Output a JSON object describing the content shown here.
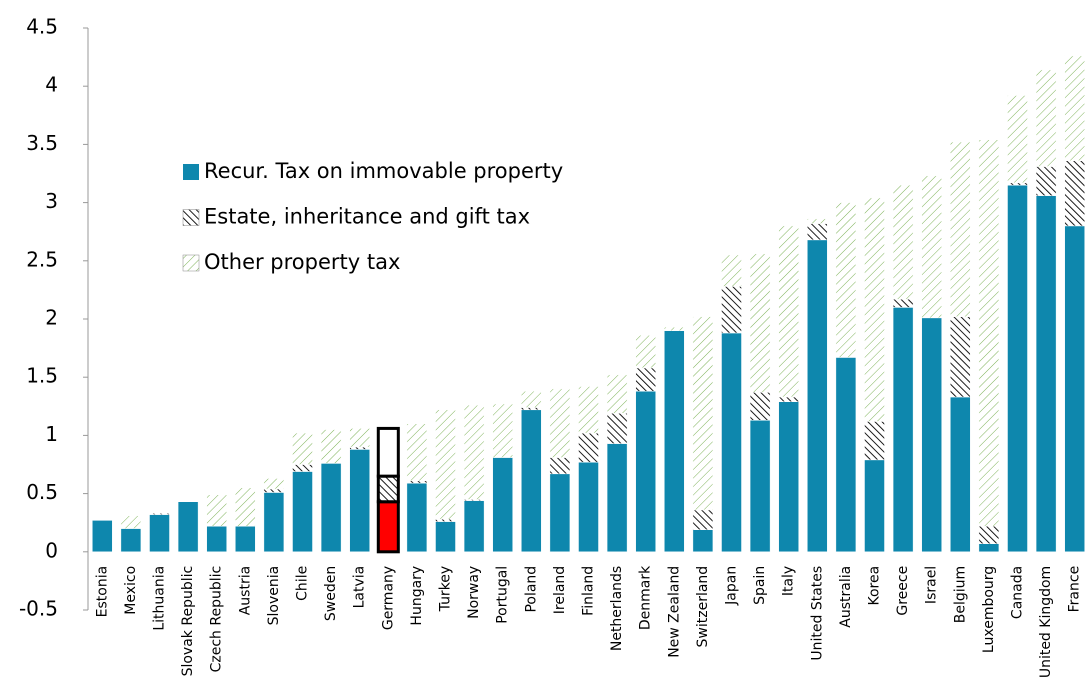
{
  "chart_data": {
    "type": "stacked_bar",
    "categories": [
      "Estonia",
      "Mexico",
      "Lithuania",
      "Slovak Republic",
      "Czech Republic",
      "Austria",
      "Slovenia",
      "Chile",
      "Sweden",
      "Latvia",
      "Germany",
      "Hungary",
      "Turkey",
      "Norway",
      "Portugal",
      "Poland",
      "Ireland",
      "Finland",
      "Netherlands",
      "Denmark",
      "New Zealand",
      "Switzerland",
      "Japan",
      "Spain",
      "Italy",
      "United States",
      "Australia",
      "Korea",
      "Greece",
      "Israel",
      "Belgium",
      "Luxembourg",
      "Canada",
      "United Kingdom",
      "France"
    ],
    "series": [
      {
        "name": "Recur. Tax on immovable property",
        "color": "#0e87ad",
        "fill": "solid",
        "values": [
          0.27,
          0.2,
          0.32,
          0.43,
          0.22,
          0.22,
          0.51,
          0.69,
          0.76,
          0.88,
          0.43,
          0.59,
          0.26,
          0.44,
          0.81,
          1.22,
          0.67,
          0.77,
          0.93,
          1.38,
          1.9,
          0.19,
          1.88,
          1.13,
          1.29,
          2.68,
          1.67,
          0.79,
          2.1,
          2.01,
          1.33,
          0.07,
          3.15,
          3.06,
          2.8
        ]
      },
      {
        "name": "Estate, inheritance and gift tax",
        "color": "#000000",
        "fill": "hatch",
        "values": [
          0,
          0,
          0.01,
          0,
          0,
          0,
          0.03,
          0.06,
          0,
          0.02,
          0.22,
          0.02,
          0.02,
          0.01,
          0,
          0.02,
          0.14,
          0.25,
          0.26,
          0.2,
          0,
          0.17,
          0.4,
          0.24,
          0.04,
          0.14,
          0,
          0.33,
          0.07,
          0,
          0.69,
          0.15,
          0.02,
          0.25,
          0.56
        ]
      },
      {
        "name": "Other property tax",
        "color": "#7fb35a",
        "fill": "hatch",
        "values": [
          0,
          0.11,
          0,
          0,
          0.27,
          0.33,
          0.09,
          0.27,
          0.29,
          0.16,
          0.41,
          0.49,
          0.94,
          0.81,
          0.46,
          0.14,
          0.59,
          0.4,
          0.33,
          0.28,
          0.03,
          1.66,
          0.27,
          1.19,
          1.47,
          0.04,
          1.33,
          1.92,
          0.98,
          1.22,
          1.5,
          3.32,
          0.75,
          0.83,
          0.9
        ]
      }
    ],
    "highlight": {
      "category": "Germany",
      "color": "#ff0000"
    },
    "ylim": [
      -0.5,
      4.5
    ],
    "yticks": [
      {
        "value": -0.5,
        "label": "-0.5"
      },
      0,
      0.5,
      1,
      1.5,
      2,
      2.5,
      3,
      3.5,
      4,
      4.5
    ],
    "legend": "upper-left"
  }
}
